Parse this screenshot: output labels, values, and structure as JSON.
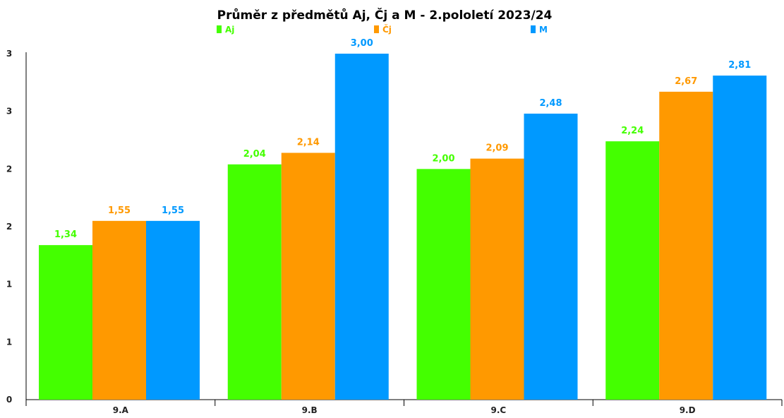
{
  "chart_data": {
    "type": "bar",
    "title": "Průměr z předmětů Aj, Čj a M - 2.pololetí 2023/24",
    "xlabel": "",
    "ylabel": "",
    "categories": [
      "9.A",
      "9.B",
      "9.C",
      "9.D"
    ],
    "series": [
      {
        "name": "Aj",
        "color": "#44ff00",
        "values": [
          1.34,
          2.04,
          2.0,
          2.24
        ],
        "labels": [
          "1,34",
          "2,04",
          "2,00",
          "2,24"
        ]
      },
      {
        "name": "Čj",
        "color": "#ff9900",
        "values": [
          1.55,
          2.14,
          2.09,
          2.67
        ],
        "labels": [
          "1,55",
          "2,14",
          "2,09",
          "2,67"
        ]
      },
      {
        "name": "M",
        "color": "#0099ff",
        "values": [
          1.55,
          3.0,
          2.48,
          2.81
        ],
        "labels": [
          "1,55",
          "3,00",
          "2,48",
          "2,81"
        ]
      }
    ],
    "ylim": [
      0,
      3
    ],
    "yticks": [
      {
        "value": 0,
        "label": "0"
      },
      {
        "value": 0.5,
        "label": "1"
      },
      {
        "value": 1.0,
        "label": "1"
      },
      {
        "value": 1.5,
        "label": "2"
      },
      {
        "value": 2.0,
        "label": "2"
      },
      {
        "value": 2.5,
        "label": "3"
      },
      {
        "value": 3.0,
        "label": "3"
      }
    ],
    "grid": false,
    "legend_position": "top"
  }
}
